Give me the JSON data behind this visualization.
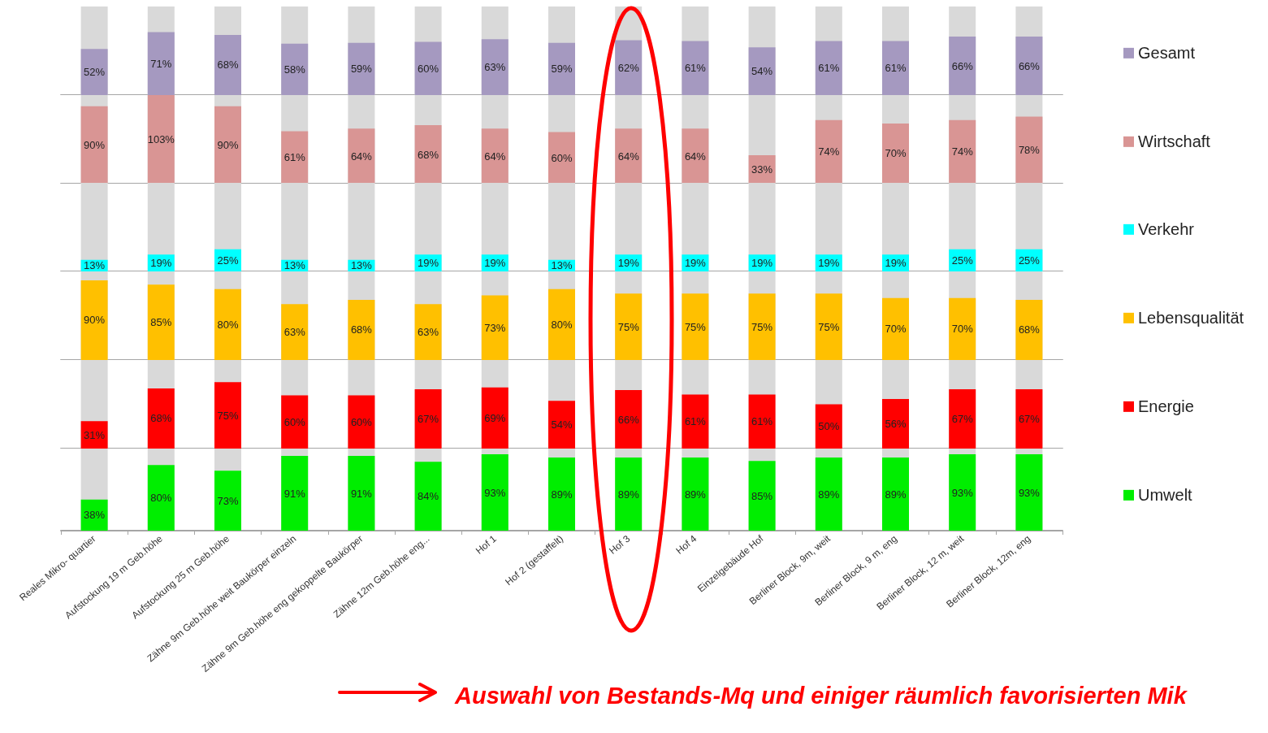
{
  "chart_data": [
    {
      "type": "bar",
      "categories": [
        null,
        null,
        null,
        null,
        null,
        null,
        null,
        null,
        null,
        null,
        null,
        null,
        null,
        null,
        null
      ],
      "series": [
        {
          "name": "Gesamt",
          "color": "#a599c0",
          "values": [
            52,
            71,
            68,
            58,
            59,
            60,
            63,
            59,
            62,
            61,
            54,
            61,
            61,
            66,
            66
          ],
          "value_labels": [
            "52%",
            "71%",
            "68%",
            "58%",
            "59%",
            "60%",
            "63%",
            "59%",
            "62%",
            "61%",
            "54%",
            "61%",
            "61%",
            "66%",
            "66%"
          ]
        }
      ],
      "ylim": [
        0,
        100
      ],
      "legend": "right",
      "tick_labels": false
    },
    {
      "type": "bar",
      "categories": [
        null,
        null,
        null,
        null,
        null,
        null,
        null,
        null,
        null,
        null,
        null,
        null,
        null,
        null,
        null
      ],
      "series": [
        {
          "name": "Wirtschaft",
          "color": "#d99594",
          "values": [
            90,
            103,
            90,
            61,
            64,
            68,
            64,
            60,
            64,
            64,
            33,
            74,
            70,
            74,
            78
          ],
          "value_labels": [
            "90%",
            "103%",
            "90%",
            "61%",
            "64%",
            "68%",
            "64%",
            "60%",
            "64%",
            "64%",
            "33%",
            "74%",
            "70%",
            "74%",
            "78%"
          ]
        }
      ],
      "ylim": [
        0,
        103
      ],
      "legend": "right",
      "tick_labels": false
    },
    {
      "type": "bar",
      "categories": [
        null,
        null,
        null,
        null,
        null,
        null,
        null,
        null,
        null,
        null,
        null,
        null,
        null,
        null,
        null
      ],
      "series": [
        {
          "name": "Verkehr",
          "color": "#00ffff",
          "values": [
            13,
            19,
            25,
            13,
            13,
            19,
            19,
            13,
            19,
            19,
            19,
            19,
            19,
            25,
            25
          ],
          "value_labels": [
            "13%",
            "19%",
            "25%",
            "13%",
            "13%",
            "19%",
            "19%",
            "13%",
            "19%",
            "19%",
            "19%",
            "19%",
            "19%",
            "25%",
            "25%"
          ]
        }
      ],
      "ylim": [
        0,
        100
      ],
      "legend": "right",
      "tick_labels": false
    },
    {
      "type": "bar",
      "categories": [
        null,
        null,
        null,
        null,
        null,
        null,
        null,
        null,
        null,
        null,
        null,
        null,
        null,
        null,
        null
      ],
      "series": [
        {
          "name": "Lebensqualität",
          "color": "#ffc000",
          "values": [
            90,
            85,
            80,
            63,
            68,
            63,
            73,
            80,
            75,
            75,
            75,
            75,
            70,
            70,
            68
          ],
          "value_labels": [
            "90%",
            "85%",
            "80%",
            "63%",
            "68%",
            "63%",
            "73%",
            "80%",
            "75%",
            "75%",
            "75%",
            "75%",
            "70%",
            "70%",
            "68%"
          ]
        }
      ],
      "ylim": [
        0,
        100
      ],
      "legend": "right",
      "tick_labels": false
    },
    {
      "type": "bar",
      "categories": [
        null,
        null,
        null,
        null,
        null,
        null,
        null,
        null,
        null,
        null,
        null,
        null,
        null,
        null,
        null
      ],
      "series": [
        {
          "name": "Energie",
          "color": "#ff0000",
          "values": [
            31,
            68,
            75,
            60,
            60,
            67,
            69,
            54,
            66,
            61,
            61,
            50,
            56,
            67,
            67
          ],
          "value_labels": [
            "31%",
            "68%",
            "75%",
            "60%",
            "60%",
            "67%",
            "69%",
            "54%",
            "66%",
            "61%",
            "61%",
            "50%",
            "56%",
            "67%",
            "67%"
          ]
        }
      ],
      "ylim": [
        0,
        100
      ],
      "legend": "right",
      "tick_labels": false
    },
    {
      "type": "bar",
      "categories": [
        "Reales Mikro- quartier",
        "Aufstockung 19 m Geb.höhe",
        "Aufstockung 25 m Geb.höhe",
        "Zähne 9m Geb.höhe weit Baukörper einzeln",
        "Zähne 9m Geb.höhe eng gekoppelte Baukörper",
        "Zähne 12m Geb.höhe eng...",
        "Hof 1",
        "Hof 2 (gestaffelt)",
        "Hof 3",
        "Hof 4",
        "Einzelgebäude Hof",
        "Berliner Block, 9m, weit",
        "Berliner Block, 9 m, eng",
        "Berliner Block, 12 m, weit",
        "Berliner Block, 12m, eng"
      ],
      "series": [
        {
          "name": "Umwelt",
          "color": "#00ee00",
          "values": [
            38,
            80,
            73,
            91,
            91,
            84,
            93,
            89,
            89,
            89,
            85,
            89,
            89,
            93,
            93
          ],
          "value_labels": [
            "38%",
            "80%",
            "73%",
            "91%",
            "91%",
            "84%",
            "93%",
            "89%",
            "89%",
            "89%",
            "85%",
            "89%",
            "89%",
            "93%",
            "93%"
          ]
        }
      ],
      "ylim": [
        0,
        100
      ],
      "legend": "right",
      "tick_labels": "x",
      "annotations": [
        "Auswahl von Bestands-Mq und einiger räumlich favorisierten Mik"
      ]
    }
  ]
}
